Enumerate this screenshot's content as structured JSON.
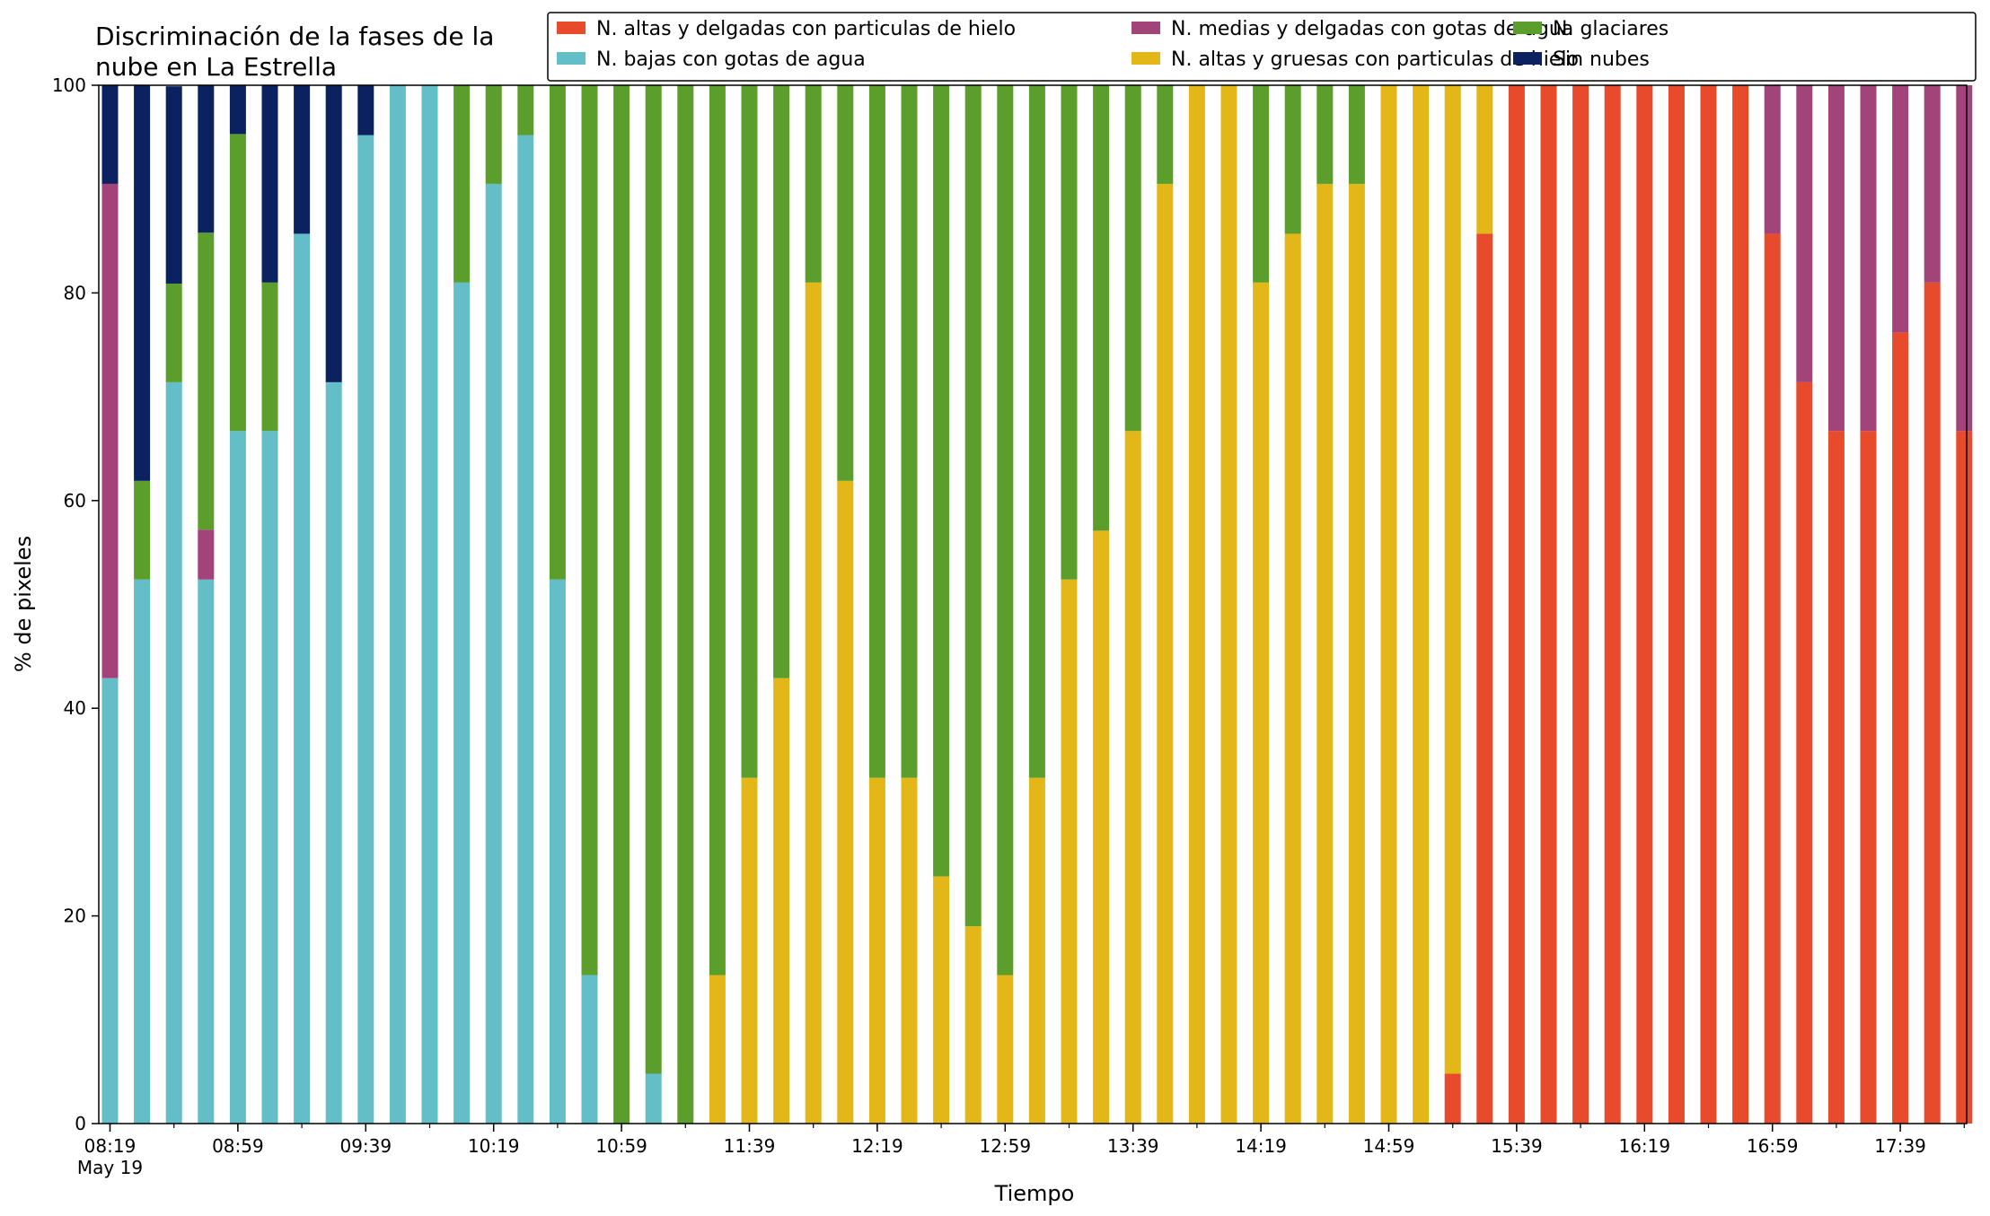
{
  "chart_data": {
    "type": "bar",
    "stacked": true,
    "title": "Discriminación de la fases de la nube en La Estrella",
    "title_lines": [
      "Discriminación de la fases de la",
      "nube en La Estrella"
    ],
    "xlabel": "Tiempo",
    "ylabel": "% de pixeles",
    "ylim": [
      0,
      100
    ],
    "y_ticks": [
      0,
      20,
      40,
      60,
      80,
      100
    ],
    "x_ticks": [
      {
        "index": 0,
        "label": "08:19",
        "sublabel": "May 19"
      },
      {
        "index": 4,
        "label": "08:59"
      },
      {
        "index": 8,
        "label": "09:39"
      },
      {
        "index": 12,
        "label": "10:19"
      },
      {
        "index": 16,
        "label": "10:59"
      },
      {
        "index": 20,
        "label": "11:39"
      },
      {
        "index": 24,
        "label": "12:19"
      },
      {
        "index": 28,
        "label": "12:59"
      },
      {
        "index": 32,
        "label": "13:39"
      },
      {
        "index": 36,
        "label": "14:19"
      },
      {
        "index": 40,
        "label": "14:59"
      },
      {
        "index": 44,
        "label": "15:39"
      },
      {
        "index": 48,
        "label": "16:19"
      },
      {
        "index": 52,
        "label": "16:59"
      },
      {
        "index": 56,
        "label": "17:39"
      }
    ],
    "x_time_step_minutes": 10,
    "grid": false,
    "legend_position": "top-right",
    "legend": [
      {
        "series_index": 0,
        "column": 0,
        "row": 0
      },
      {
        "series_index": 1,
        "column": 0,
        "row": 1
      },
      {
        "series_index": 2,
        "column": 1,
        "row": 0
      },
      {
        "series_index": 3,
        "column": 1,
        "row": 1
      },
      {
        "series_index": 4,
        "column": 2,
        "row": 0
      },
      {
        "series_index": 5,
        "column": 2,
        "row": 1
      }
    ],
    "series": [
      {
        "name": "N. altas y delgadas con particulas de hielo",
        "color": "#e84a2c",
        "values": [
          0,
          0,
          0,
          0,
          0,
          0,
          0,
          0,
          0,
          0,
          0,
          0,
          0,
          0,
          0,
          0,
          0,
          0,
          0,
          0,
          0,
          0,
          0,
          0,
          0,
          0,
          0,
          0,
          0,
          0,
          0,
          0,
          0,
          0,
          0,
          0,
          0,
          0,
          0,
          0,
          0,
          0,
          4.8,
          85.7,
          100,
          100,
          100,
          100,
          100,
          100,
          100,
          100,
          85.7,
          71.4,
          66.7,
          66.7,
          76.2,
          81,
          66.7
        ]
      },
      {
        "name": "N. bajas con gotas de agua",
        "color": "#64bec8",
        "values": [
          42.9,
          52.4,
          71.4,
          52.4,
          66.7,
          66.7,
          85.7,
          71.4,
          95.2,
          100,
          100,
          81,
          90.5,
          95.2,
          52.4,
          14.3,
          0,
          4.8,
          0,
          0,
          0,
          0,
          0,
          0,
          0,
          0,
          0,
          0,
          0,
          0,
          0,
          0,
          0,
          0,
          0,
          0,
          0,
          0,
          0,
          0,
          0,
          0,
          0,
          0,
          0,
          0,
          0,
          0,
          0,
          0,
          0,
          0,
          0,
          0,
          0,
          0,
          0,
          0,
          0
        ]
      },
      {
        "name": "N. medias y delgadas con gotas de agua",
        "color": "#a2447a",
        "values": [
          47.6,
          0,
          0,
          4.8,
          0,
          0,
          0,
          0,
          0,
          0,
          0,
          0,
          0,
          0,
          0,
          0,
          0,
          0,
          0,
          0,
          0,
          0,
          0,
          0,
          0,
          0,
          0,
          0,
          0,
          0,
          0,
          0,
          0,
          0,
          0,
          0,
          0,
          0,
          0,
          0,
          0,
          0,
          0,
          0,
          0,
          0,
          0,
          0,
          0,
          0,
          0,
          0,
          14.3,
          28.6,
          33.3,
          33.3,
          23.8,
          19,
          33.3
        ]
      },
      {
        "name": "N. altas y gruesas con particulas de hielo",
        "color": "#e3b718",
        "values": [
          0,
          0,
          0,
          0,
          0,
          0,
          0,
          0,
          0,
          0,
          0,
          0,
          0,
          0,
          0,
          0,
          0,
          0,
          0,
          14.3,
          33.3,
          42.9,
          81,
          61.9,
          33.3,
          33.3,
          23.8,
          19,
          14.3,
          33.3,
          52.4,
          57.1,
          66.7,
          90.5,
          100,
          100,
          81,
          85.7,
          90.5,
          90.5,
          100,
          100,
          95.2,
          14.3,
          0,
          0,
          0,
          0,
          0,
          0,
          0,
          0,
          0,
          0,
          0,
          0,
          0,
          0,
          0
        ]
      },
      {
        "name": "N. glaciares",
        "color": "#5b9e2b",
        "values": [
          0,
          9.5,
          9.5,
          28.6,
          28.6,
          14.3,
          0,
          0,
          0,
          0,
          0,
          19,
          9.5,
          4.8,
          47.6,
          85.7,
          100,
          95.2,
          100,
          85.7,
          66.7,
          57.1,
          19,
          38.1,
          66.7,
          66.7,
          76.2,
          81,
          85.7,
          66.7,
          47.6,
          42.9,
          33.3,
          9.5,
          0,
          0,
          19,
          14.3,
          9.5,
          9.5,
          0,
          0,
          0,
          0,
          0,
          0,
          0,
          0,
          0,
          0,
          0,
          0,
          0,
          0,
          0,
          0,
          0,
          0,
          0
        ]
      },
      {
        "name": "Sin nubes",
        "color": "#0c2260",
        "values": [
          9.5,
          38.1,
          19,
          14.2,
          4.7,
          19,
          14.3,
          28.6,
          4.8,
          0,
          0,
          0,
          0,
          0,
          0,
          0,
          0,
          0,
          0,
          0,
          0,
          0,
          0,
          0,
          0,
          0,
          0,
          0,
          0,
          0,
          0,
          0,
          0,
          0,
          0,
          0,
          0,
          0,
          0,
          0,
          0,
          0,
          0,
          0,
          0,
          0,
          0,
          0,
          0,
          0,
          0,
          0,
          0,
          0,
          0,
          0,
          0,
          0,
          0
        ]
      }
    ]
  }
}
